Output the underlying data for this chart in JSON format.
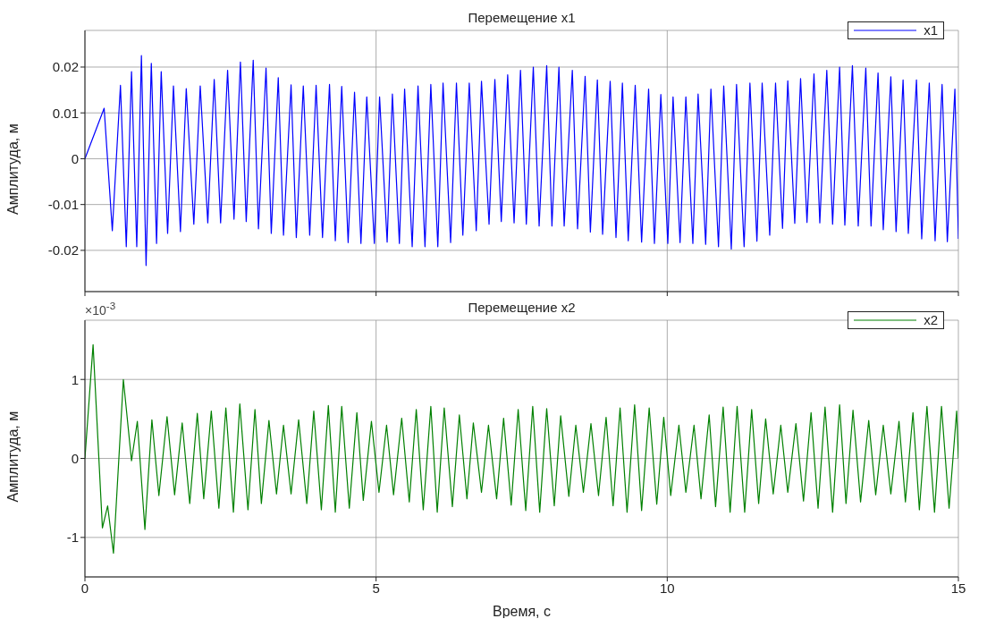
{
  "chart_data": [
    {
      "type": "line",
      "title": "Перемещение x1",
      "ylabel": "Амплитуда, м",
      "xlim": [
        0,
        15
      ],
      "xticks": [
        0,
        5,
        10,
        15
      ],
      "ylim": [
        -0.029,
        0.028
      ],
      "yticks": [
        -0.02,
        -0.01,
        0,
        0.01,
        0.02
      ],
      "grid": true,
      "legend": "top right",
      "tick_labels": "y",
      "marker": "none",
      "line_style": "solid",
      "series": [
        {
          "name": "x1",
          "color": "#0000ff",
          "x": [
            0,
            0.33,
            0.47,
            0.61,
            0.71,
            0.8,
            0.89,
            0.97,
            1.05,
            1.14,
            1.23,
            1.31,
            1.42,
            1.52,
            1.64,
            1.74,
            1.87,
            1.98,
            2.11,
            2.22,
            2.33,
            2.45,
            2.56,
            2.67,
            2.77,
            2.89,
            2.98,
            3.11,
            3.2,
            3.32,
            3.41,
            3.54,
            3.63,
            3.75,
            3.86,
            3.97,
            4.08,
            4.2,
            4.3,
            4.41,
            4.52,
            4.63,
            4.74,
            4.84,
            4.97,
            5.06,
            5.19,
            5.28,
            5.4,
            5.49,
            5.62,
            5.72,
            5.84,
            5.94,
            6.06,
            6.15,
            6.28,
            6.38,
            6.49,
            6.6,
            6.72,
            6.81,
            6.94,
            7.04,
            7.15,
            7.26,
            7.37,
            7.48,
            7.58,
            7.7,
            7.8,
            7.93,
            8.02,
            8.14,
            8.23,
            8.37,
            8.46,
            8.59,
            8.68,
            8.8,
            8.89,
            9.02,
            9.12,
            9.23,
            9.33,
            9.45,
            9.56,
            9.68,
            9.78,
            9.89,
            10.01,
            10.1,
            10.22,
            10.32,
            10.44,
            10.53,
            10.66,
            10.75,
            10.88,
            10.97,
            11.1,
            11.19,
            11.32,
            11.42,
            11.54,
            11.63,
            11.76,
            11.86,
            11.98,
            12.07,
            12.19,
            12.29,
            12.4,
            12.52,
            12.62,
            12.74,
            12.84,
            12.96,
            13.05,
            13.18,
            13.28,
            13.41,
            13.5,
            13.62,
            13.71,
            13.84,
            13.93,
            14.05,
            14.14,
            14.28,
            14.37,
            14.5,
            14.6,
            14.72,
            14.81,
            14.94,
            15
          ],
          "values": [
            0,
            0.011,
            -0.0157,
            0.016,
            -0.0192,
            0.019,
            -0.0192,
            0.0225,
            -0.0233,
            0.0208,
            -0.0185,
            0.019,
            -0.0163,
            0.0159,
            -0.0159,
            0.0153,
            -0.0143,
            0.0159,
            -0.014,
            0.0173,
            -0.014,
            0.0193,
            -0.0132,
            0.0211,
            -0.0137,
            0.0215,
            -0.0153,
            0.0198,
            -0.0163,
            0.0177,
            -0.0167,
            0.0161,
            -0.0172,
            0.0159,
            -0.0167,
            0.016,
            -0.0172,
            0.0162,
            -0.0179,
            0.0158,
            -0.0183,
            0.0145,
            -0.0185,
            0.0135,
            -0.0185,
            0.0135,
            -0.0182,
            0.0141,
            -0.0185,
            0.0152,
            -0.0192,
            0.0159,
            -0.0192,
            0.0162,
            -0.0192,
            0.0165,
            -0.0183,
            0.0165,
            -0.0167,
            0.0165,
            -0.0157,
            0.0169,
            -0.0143,
            0.0173,
            -0.0137,
            0.0183,
            -0.014,
            0.0193,
            -0.0143,
            0.02,
            -0.0147,
            0.0203,
            -0.0147,
            0.02,
            -0.0147,
            0.0193,
            -0.0153,
            0.018,
            -0.016,
            0.0172,
            -0.0165,
            0.0169,
            -0.0172,
            0.0165,
            -0.0179,
            0.016,
            -0.0182,
            0.0152,
            -0.0185,
            0.014,
            -0.0185,
            0.0135,
            -0.0183,
            0.0135,
            -0.0185,
            0.0141,
            -0.0187,
            0.0152,
            -0.0192,
            0.0159,
            -0.0197,
            0.0162,
            -0.0192,
            0.0165,
            -0.018,
            0.0165,
            -0.0167,
            0.0165,
            -0.0152,
            0.017,
            -0.0141,
            0.0175,
            -0.0139,
            0.0185,
            -0.014,
            0.0193,
            -0.0143,
            0.02,
            -0.0145,
            0.0203,
            -0.0147,
            0.0198,
            -0.0147,
            0.0187,
            -0.0155,
            0.0179,
            -0.0159,
            0.0172,
            -0.0163,
            0.0172,
            -0.0175,
            0.0165,
            -0.0179,
            0.0162,
            -0.0181,
            0.0152,
            -0.0175
          ]
        }
      ]
    },
    {
      "type": "line",
      "title": "Перемещение x2",
      "xlabel": "Время, с",
      "ylabel": "Амплитуда, м",
      "annotations": [
        "×10$^{-3}$"
      ],
      "xlim": [
        0,
        15
      ],
      "xticks": [
        0,
        5,
        10,
        15
      ],
      "ylim": [
        -1.5,
        1.75
      ],
      "yticks": [
        -1,
        0,
        1
      ],
      "grid": true,
      "legend": "top right",
      "marker": "none",
      "line_style": "solid",
      "series": [
        {
          "name": "x2",
          "color": "#008000",
          "x": [
            0,
            0.14,
            0.3,
            0.39,
            0.49,
            0.66,
            0.8,
            0.9,
            1.03,
            1.15,
            1.27,
            1.41,
            1.54,
            1.67,
            1.8,
            1.93,
            2.04,
            2.17,
            2.3,
            2.42,
            2.55,
            2.66,
            2.8,
            2.92,
            3.03,
            3.16,
            3.29,
            3.41,
            3.54,
            3.67,
            3.81,
            3.93,
            4.06,
            4.18,
            4.3,
            4.41,
            4.54,
            4.67,
            4.78,
            4.92,
            5.05,
            5.18,
            5.3,
            5.44,
            5.57,
            5.69,
            5.81,
            5.94,
            6.05,
            6.17,
            6.31,
            6.43,
            6.56,
            6.67,
            6.81,
            6.93,
            7.07,
            7.19,
            7.32,
            7.44,
            7.57,
            7.69,
            7.81,
            7.93,
            8.06,
            8.17,
            8.31,
            8.43,
            8.56,
            8.69,
            8.82,
            8.95,
            9.07,
            9.19,
            9.31,
            9.44,
            9.56,
            9.69,
            9.82,
            9.94,
            10.06,
            10.2,
            10.32,
            10.46,
            10.58,
            10.72,
            10.83,
            10.96,
            11.08,
            11.2,
            11.33,
            11.45,
            11.57,
            11.69,
            11.82,
            11.95,
            12.07,
            12.21,
            12.34,
            12.47,
            12.59,
            12.71,
            12.84,
            12.96,
            13.07,
            13.19,
            13.32,
            13.46,
            13.58,
            13.71,
            13.84,
            13.98,
            14.09,
            14.22,
            14.33,
            14.46,
            14.59,
            14.71,
            14.84,
            14.97,
            15
          ],
          "values": [
            0,
            1.44,
            -0.88,
            -0.6,
            -1.2,
            1.0,
            -0.03,
            0.47,
            -0.9,
            0.49,
            -0.47,
            0.53,
            -0.46,
            0.45,
            -0.57,
            0.57,
            -0.51,
            0.6,
            -0.63,
            0.64,
            -0.68,
            0.69,
            -0.65,
            0.62,
            -0.57,
            0.48,
            -0.45,
            0.42,
            -0.45,
            0.49,
            -0.57,
            0.6,
            -0.65,
            0.67,
            -0.68,
            0.66,
            -0.63,
            0.58,
            -0.53,
            0.47,
            -0.43,
            0.42,
            -0.46,
            0.51,
            -0.55,
            0.62,
            -0.65,
            0.66,
            -0.68,
            0.64,
            -0.61,
            0.55,
            -0.51,
            0.45,
            -0.43,
            0.42,
            -0.51,
            0.51,
            -0.59,
            0.62,
            -0.66,
            0.66,
            -0.68,
            0.63,
            -0.6,
            0.54,
            -0.48,
            0.42,
            -0.43,
            0.44,
            -0.47,
            0.52,
            -0.6,
            0.64,
            -0.68,
            0.68,
            -0.66,
            0.64,
            -0.58,
            0.52,
            -0.47,
            0.42,
            -0.43,
            0.42,
            -0.51,
            0.55,
            -0.61,
            0.65,
            -0.68,
            0.66,
            -0.68,
            0.62,
            -0.57,
            0.5,
            -0.45,
            0.42,
            -0.43,
            0.44,
            -0.54,
            0.58,
            -0.63,
            0.65,
            -0.68,
            0.68,
            -0.57,
            0.61,
            -0.55,
            0.48,
            -0.46,
            0.42,
            -0.45,
            0.47,
            -0.55,
            0.58,
            -0.65,
            0.66,
            -0.68,
            0.66,
            -0.63,
            0.6,
            0
          ]
        }
      ]
    }
  ]
}
